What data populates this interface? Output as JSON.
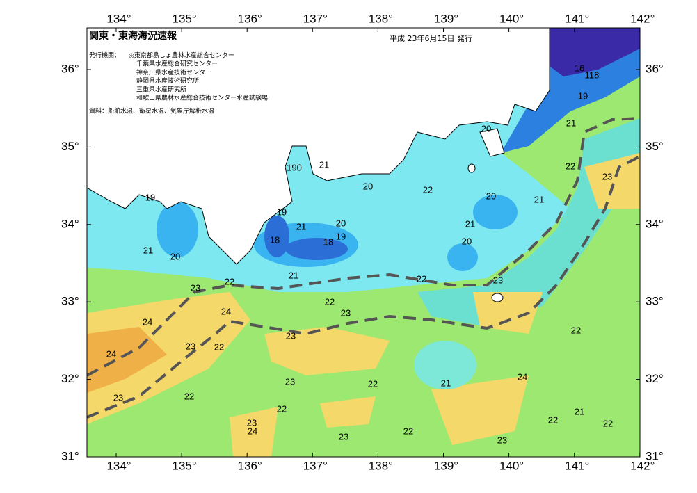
{
  "header": {
    "title": "関東・東海海況速報",
    "issued": "平成 23年6月15日 発行"
  },
  "publisher": {
    "label": "発行機関：",
    "agencies": [
      "◎東京都島しょ農林水産総合センター",
      "千葉県水産総合研究センター",
      "神奈川県水産技術センター",
      "静岡県水産技術研究所",
      "三重県水産研究所",
      "和歌山県農林水産総合技術センター水産試験場"
    ]
  },
  "source": "資料：船舶水温、衛星水温、気象庁解析水温",
  "axes": {
    "lon_ticks": [
      {
        "value": 134,
        "label": "134°"
      },
      {
        "value": 135,
        "label": "135°"
      },
      {
        "value": 136,
        "label": "136°"
      },
      {
        "value": 137,
        "label": "137°"
      },
      {
        "value": 138,
        "label": "138°"
      },
      {
        "value": 139,
        "label": "139°"
      },
      {
        "value": 140,
        "label": "140°"
      },
      {
        "value": 141,
        "label": "141°"
      },
      {
        "value": 142,
        "label": "142°"
      }
    ],
    "lat_ticks": [
      {
        "value": 36,
        "label": "36°"
      },
      {
        "value": 35,
        "label": "35°"
      },
      {
        "value": 34,
        "label": "34°"
      },
      {
        "value": 33,
        "label": "33°"
      },
      {
        "value": 32,
        "label": "32°"
      },
      {
        "value": 31,
        "label": "31°"
      }
    ]
  },
  "isotherm_labels": [
    "16",
    "118",
    "19",
    "21",
    "20",
    "22",
    "23",
    "21",
    "20",
    "22",
    "20",
    "21",
    "190",
    "19",
    "19",
    "21",
    "20",
    "18",
    "19",
    "18",
    "21",
    "20",
    "21",
    "20",
    "21",
    "22",
    "23",
    "23",
    "22",
    "22",
    "23",
    "24",
    "24",
    "23",
    "23",
    "22",
    "24",
    "22",
    "21",
    "22",
    "23",
    "24",
    "23",
    "22",
    "22",
    "23",
    "24",
    "21",
    "22",
    "22",
    "22",
    "23",
    "23"
  ]
}
